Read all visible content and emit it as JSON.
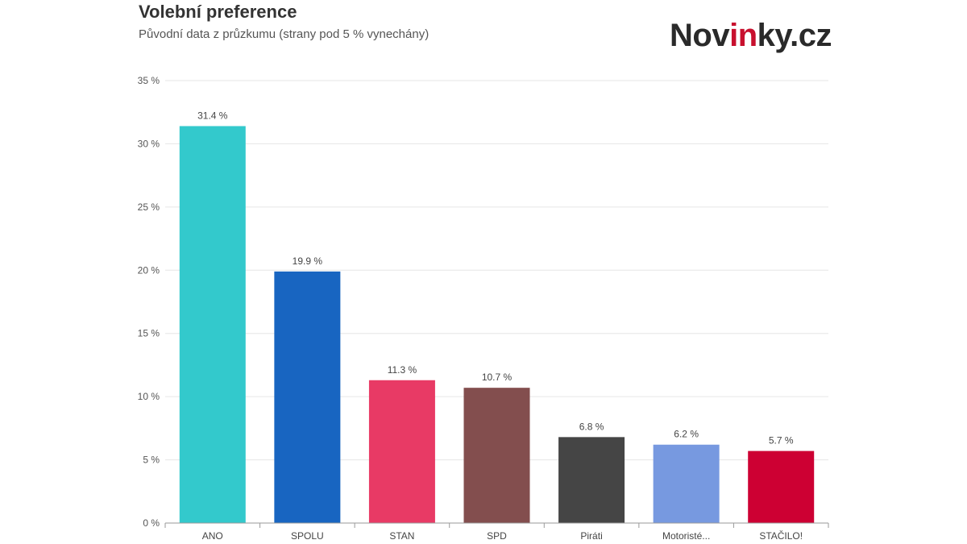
{
  "header": {
    "title": "Volební preference",
    "subtitle": "Původní data z průzkumu (strany pod 5 % vynechány)"
  },
  "logo": {
    "part1": "Nov",
    "part2": "in",
    "part3": "ky.cz",
    "color_dark": "#2a2a2a",
    "color_accent": "#c8102e"
  },
  "chart_data": {
    "type": "bar",
    "title": "Volební preference",
    "subtitle": "Původní data z průzkumu (strany pod 5 % vynechány)",
    "xlabel": "",
    "ylabel": "",
    "ylim": [
      0,
      35
    ],
    "yticks": [
      0,
      5,
      10,
      15,
      20,
      25,
      30,
      35
    ],
    "ytick_labels": [
      "0 %",
      "5 %",
      "10 %",
      "15 %",
      "20 %",
      "25 %",
      "30 %",
      "35 %"
    ],
    "grid": true,
    "categories": [
      "ANO",
      "SPOLU",
      "STAN",
      "SPD",
      "Piráti",
      "Motoristé...",
      "STAČILO!"
    ],
    "values": [
      31.4,
      19.9,
      11.3,
      10.7,
      6.8,
      6.2,
      5.7
    ],
    "value_labels": [
      "31.4 %",
      "19.9 %",
      "11.3 %",
      "10.7 %",
      "6.8 %",
      "6.2 %",
      "5.7 %"
    ],
    "colors": [
      "#33c9cc",
      "#1865c1",
      "#e83a65",
      "#834e4e",
      "#454545",
      "#7799e0",
      "#cd0033"
    ]
  }
}
